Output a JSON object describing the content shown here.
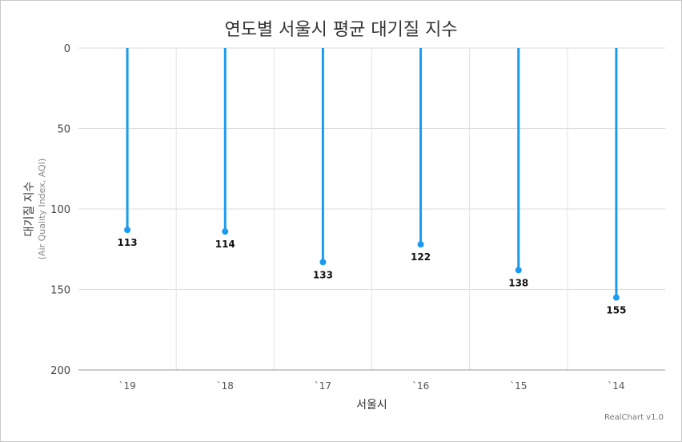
{
  "chart_data": {
    "type": "lollipop",
    "title": "연도별 서울시 평균 대기질 지수",
    "categories": [
      "`19",
      "`18",
      "`17",
      "`16",
      "`15",
      "`14"
    ],
    "series": [
      {
        "values": [
          113,
          114,
          133,
          122,
          138,
          155
        ]
      }
    ],
    "xlabel": "서울시",
    "ylabel": "대기질 지수",
    "ylabel_sub": "(Air Quality Index, AQI)",
    "yticks": [
      0,
      50,
      100,
      150,
      200
    ],
    "ylim": [
      0,
      200
    ],
    "y_reversed": true,
    "grid": true,
    "color": "#1a9bf0",
    "credits": "RealChart v1.0"
  }
}
